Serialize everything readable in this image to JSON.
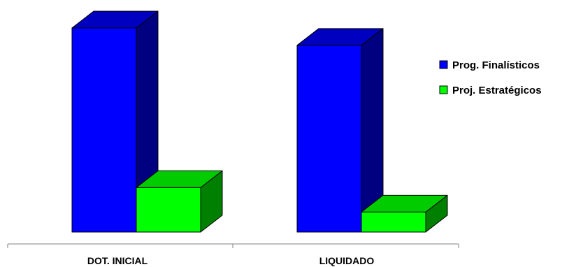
{
  "chart_data": {
    "type": "bar",
    "style": "3d-clustered-column",
    "categories": [
      "DOT. INICIAL",
      "LIQUIDADO"
    ],
    "series": [
      {
        "name": "Prog. Finalísticos",
        "values": [
          100,
          91.5
        ],
        "color": "#0000ff",
        "side_color": "#000080",
        "top_color": "#0000c0"
      },
      {
        "name": "Proj. Estratégicos",
        "values": [
          21.8,
          9.8
        ],
        "color": "#00ff00",
        "side_color": "#008000",
        "top_color": "#00cc00"
      }
    ],
    "ylim": [
      0,
      100
    ],
    "grid": false,
    "axis_labels_visible": false,
    "legend_position": "right"
  }
}
